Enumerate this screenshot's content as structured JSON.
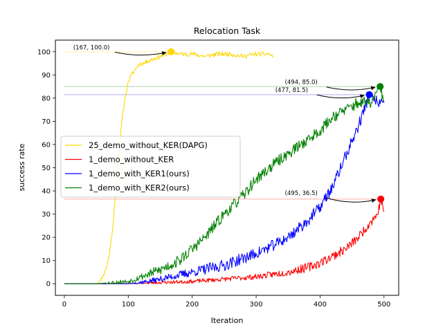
{
  "chart_data": {
    "type": "line",
    "title": "Relocation Task",
    "xlabel": "Iteration",
    "ylabel": "success rate",
    "xlim": [
      -14,
      523
    ],
    "ylim": [
      -5,
      105
    ],
    "xticks": [
      0,
      100,
      200,
      300,
      400,
      500
    ],
    "yticks": [
      0,
      10,
      20,
      30,
      40,
      50,
      60,
      70,
      80,
      90,
      100
    ],
    "grid": false,
    "legend_position": "center-left",
    "series": [
      {
        "name": "25_demo_without_KER(DAPG)",
        "color": "#ffd700",
        "x": [
          0,
          20,
          40,
          50,
          55,
          60,
          65,
          70,
          75,
          80,
          85,
          90,
          95,
          100,
          105,
          110,
          115,
          120,
          125,
          130,
          140,
          150,
          160,
          167,
          180,
          200,
          220,
          240,
          260,
          280,
          300,
          320,
          327
        ],
        "y": [
          0,
          0,
          0,
          0,
          1,
          3,
          6,
          12,
          22,
          38,
          55,
          70,
          80,
          87,
          90,
          92,
          94,
          95,
          95,
          96,
          97,
          98,
          99,
          100,
          99,
          99,
          98,
          99,
          99,
          98,
          99,
          99,
          98
        ],
        "noise": 1.0,
        "seed": 11
      },
      {
        "name": "1_demo_without_KER",
        "color": "#ff0000",
        "x": [
          0,
          50,
          100,
          150,
          200,
          250,
          300,
          350,
          380,
          400,
          420,
          440,
          460,
          480,
          490,
          495,
          500
        ],
        "y": [
          0,
          0,
          0,
          0.5,
          1,
          2,
          3,
          5,
          7,
          9,
          12,
          15,
          20,
          27,
          30,
          36.5,
          31
        ],
        "noise": 2.0,
        "seed": 23
      },
      {
        "name": "1_demo_with_KER1(ours)",
        "color": "#0000ff",
        "x": [
          0,
          50,
          100,
          130,
          150,
          200,
          250,
          300,
          330,
          350,
          380,
          400,
          420,
          440,
          460,
          477,
          490,
          500
        ],
        "y": [
          0,
          0,
          0,
          1,
          2,
          5,
          8,
          13,
          17,
          20,
          27,
          33,
          42,
          55,
          68,
          81.5,
          78,
          78
        ],
        "noise": 2.5,
        "seed": 37
      },
      {
        "name": "1_demo_with_KER2(ours)",
        "color": "#008000",
        "x": [
          0,
          50,
          100,
          120,
          150,
          180,
          200,
          220,
          250,
          280,
          300,
          330,
          350,
          380,
          400,
          420,
          440,
          460,
          480,
          494,
          500
        ],
        "y": [
          0,
          0,
          1,
          3,
          6,
          10,
          15,
          20,
          30,
          38,
          45,
          52,
          56,
          62,
          66,
          72,
          75,
          78,
          78,
          85,
          79
        ],
        "noise": 2.5,
        "seed": 53
      }
    ],
    "annotations": [
      {
        "label": "(167, 100.0)",
        "x": 167,
        "y": 100.0,
        "color": "#ffd700",
        "text_at": [
          14,
          101
        ]
      },
      {
        "label": "(494, 85.0)",
        "x": 494,
        "y": 85.0,
        "color": "#008000",
        "text_at": [
          345,
          86
        ]
      },
      {
        "label": "(477, 81.5)",
        "x": 477,
        "y": 81.5,
        "color": "#0000ff",
        "text_at": [
          330,
          82.6
        ]
      },
      {
        "label": "(495, 36.5)",
        "x": 495,
        "y": 36.5,
        "color": "#ff0000",
        "text_at": [
          345,
          38.2
        ]
      }
    ]
  }
}
